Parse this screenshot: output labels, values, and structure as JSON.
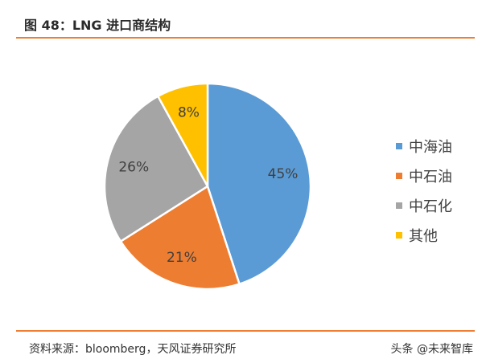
{
  "page": {
    "title": "图 48：LNG 进口商结构",
    "source": "资料来源：bloomberg，天风证券研究所",
    "watermark": "头条 @未来智库"
  },
  "chart_data": {
    "type": "pie",
    "title": "",
    "labels": [
      "中海油",
      "中石油",
      "中石化",
      "其他"
    ],
    "values": [
      45,
      21,
      26,
      8
    ],
    "value_labels": [
      "45%",
      "21%",
      "26%",
      "8%"
    ],
    "colors": [
      "#5b9bd5",
      "#ed7d31",
      "#a5a5a5",
      "#ffc000"
    ],
    "start_angle": "12 o'clock",
    "direction": "clockwise",
    "legend_position": "right"
  }
}
